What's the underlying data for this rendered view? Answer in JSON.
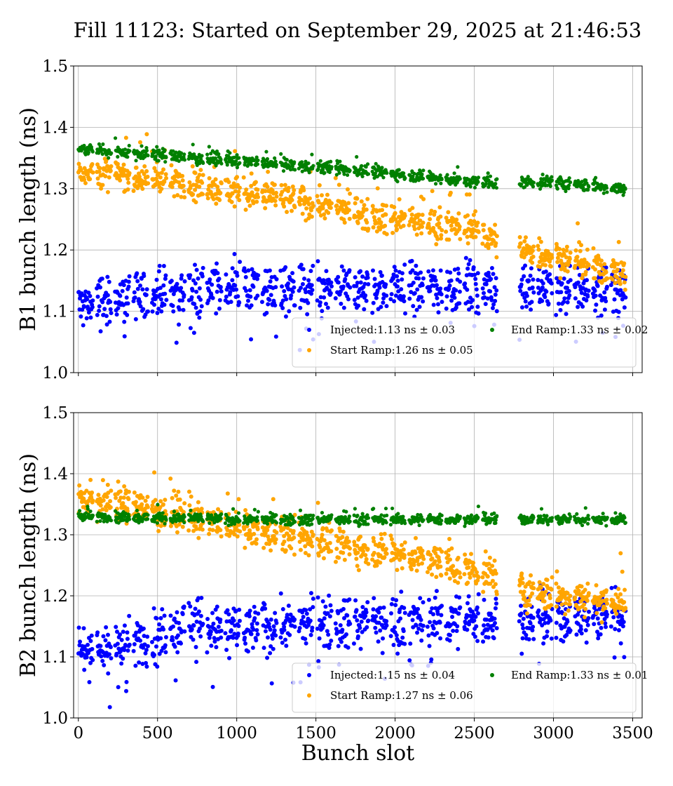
{
  "title": "Fill 11123: Started on September 29, 2025 at 21:46:53",
  "chart_data": [
    {
      "type": "scatter",
      "ylabel": "B1 bunch length (ns)",
      "xlabel": "",
      "xlim": [
        -30,
        3560
      ],
      "ylim": [
        1.0,
        1.5
      ],
      "xticks": [
        0,
        500,
        1000,
        1500,
        2000,
        2500,
        3000,
        3500
      ],
      "yticks": [
        "1.0",
        "1.1",
        "1.2",
        "1.3",
        "1.4",
        "1.5"
      ],
      "grid": true,
      "legend_position": "bottom-right",
      "series": [
        {
          "name": "Injected:1.13 ns ± 0.03",
          "color": "#0000ff",
          "spread": 0.03,
          "trend": [
            [
              0,
              1.11
            ],
            [
              500,
              1.13
            ],
            [
              1000,
              1.14
            ],
            [
              1500,
              1.13
            ],
            [
              2000,
              1.14
            ],
            [
              2500,
              1.14
            ],
            [
              3000,
              1.14
            ],
            [
              3420,
              1.13
            ]
          ]
        },
        {
          "name": "Start Ramp:1.26 ns ± 0.05",
          "color": "#ffa500",
          "spread": 0.018,
          "trend": [
            [
              0,
              1.33
            ],
            [
              500,
              1.315
            ],
            [
              1000,
              1.295
            ],
            [
              1500,
              1.275
            ],
            [
              2000,
              1.25
            ],
            [
              2500,
              1.235
            ],
            [
              2650,
              1.215
            ],
            [
              2750,
              1.2
            ],
            [
              3000,
              1.19
            ],
            [
              3420,
              1.16
            ]
          ]
        },
        {
          "name": "End Ramp:1.33 ns ± 0.02",
          "color": "#008000",
          "spread": 0.007,
          "trend": [
            [
              0,
              1.365
            ],
            [
              500,
              1.355
            ],
            [
              1000,
              1.345
            ],
            [
              1500,
              1.335
            ],
            [
              2000,
              1.325
            ],
            [
              2500,
              1.31
            ],
            [
              3000,
              1.31
            ],
            [
              3420,
              1.3
            ]
          ]
        }
      ]
    },
    {
      "type": "scatter",
      "ylabel": "B2 bunch length (ns)",
      "xlabel": "Bunch slot",
      "xlim": [
        -30,
        3560
      ],
      "ylim": [
        1.0,
        1.5
      ],
      "xticks": [
        0,
        500,
        1000,
        1500,
        2000,
        2500,
        3000,
        3500
      ],
      "yticks": [
        "1.0",
        "1.1",
        "1.2",
        "1.3",
        "1.4",
        "1.5"
      ],
      "grid": true,
      "legend_position": "bottom-right",
      "series": [
        {
          "name": "Injected:1.15 ns ± 0.04",
          "color": "#0000ff",
          "spread": 0.03,
          "trend": [
            [
              0,
              1.11
            ],
            [
              500,
              1.13
            ],
            [
              700,
              1.16
            ],
            [
              1000,
              1.14
            ],
            [
              1500,
              1.16
            ],
            [
              2000,
              1.16
            ],
            [
              2500,
              1.16
            ],
            [
              3000,
              1.16
            ],
            [
              3420,
              1.17
            ]
          ]
        },
        {
          "name": "Start Ramp:1.27 ns ± 0.06",
          "color": "#ffa500",
          "spread": 0.02,
          "trend": [
            [
              0,
              1.36
            ],
            [
              500,
              1.34
            ],
            [
              1000,
              1.31
            ],
            [
              1500,
              1.29
            ],
            [
              2000,
              1.27
            ],
            [
              2500,
              1.24
            ],
            [
              2650,
              1.23
            ],
            [
              2750,
              1.21
            ],
            [
              3000,
              1.2
            ],
            [
              3420,
              1.19
            ]
          ]
        },
        {
          "name": "End Ramp:1.33 ns ± 0.01",
          "color": "#008000",
          "spread": 0.006,
          "trend": [
            [
              0,
              1.33
            ],
            [
              1000,
              1.325
            ],
            [
              2000,
              1.325
            ],
            [
              3000,
              1.325
            ],
            [
              3420,
              1.325
            ]
          ]
        }
      ]
    }
  ]
}
